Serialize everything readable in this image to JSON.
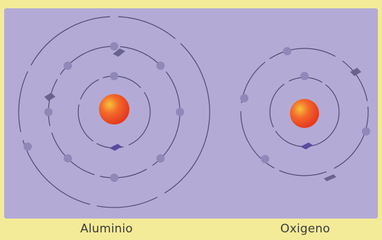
{
  "labels": {
    "aluminium": "Aluminio",
    "oxygen": "Oxigeno"
  },
  "colors": {
    "background": "#f3eb98",
    "panel": "#b3abd6",
    "nucleus": "#f04a24",
    "nucleus_highlight": "#f6c23a",
    "orbit": "#4d4a6e",
    "electron": "#8f88b8"
  },
  "atoms": [
    {
      "name": "aluminium",
      "shells": [
        2,
        8,
        3
      ]
    },
    {
      "name": "oxygen",
      "shells": [
        2,
        6
      ]
    }
  ]
}
